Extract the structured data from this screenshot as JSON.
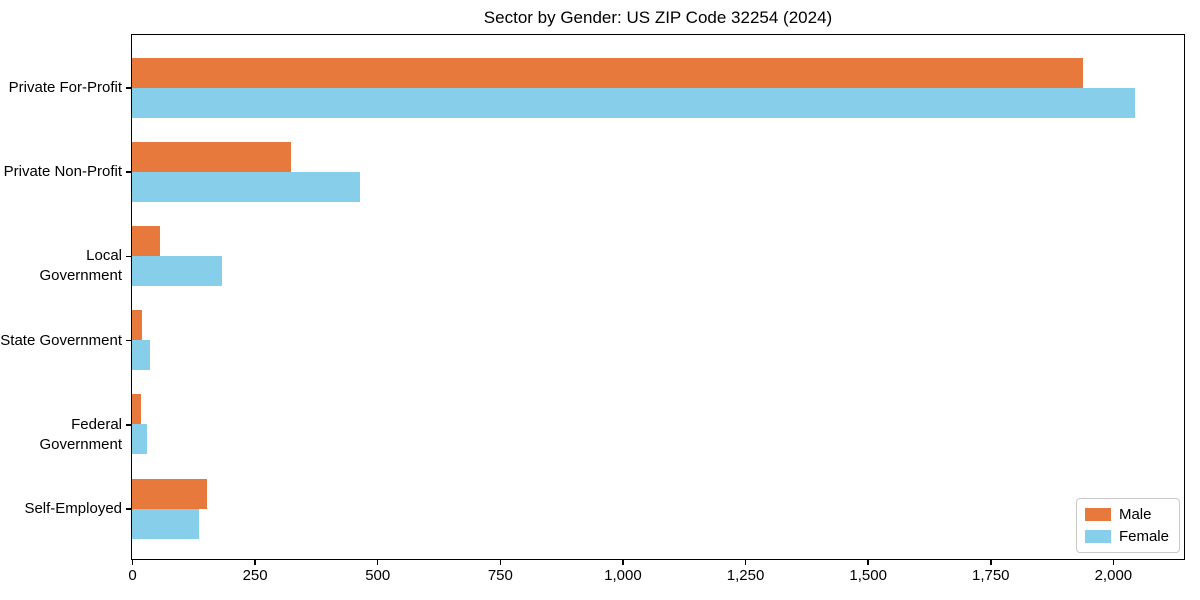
{
  "title": "Sector by Gender: US ZIP Code 32254 (2024)",
  "chart_data": {
    "type": "bar",
    "orientation": "horizontal",
    "title": "Sector by Gender: US ZIP Code 32254 (2024)",
    "categories": [
      "Private For-Profit",
      "Private Non-Profit",
      "Local Government",
      "State Government",
      "Federal Government",
      "Self-Employed"
    ],
    "series": [
      {
        "name": "Male",
        "color": "#e8793d",
        "values": [
          1940,
          325,
          57,
          20,
          18,
          153
        ]
      },
      {
        "name": "Female",
        "color": "#87ceeb",
        "values": [
          2045,
          465,
          183,
          37,
          30,
          136
        ]
      }
    ],
    "xlabel": "",
    "ylabel": "",
    "xlim": [
      0,
      2145
    ],
    "xticks": [
      0,
      250,
      500,
      750,
      1000,
      1250,
      1500,
      1750,
      2000
    ],
    "xtick_labels": [
      "0",
      "250",
      "500",
      "750",
      "1,000",
      "1,250",
      "1,500",
      "1,750",
      "2,000"
    ],
    "grid": false,
    "legend_position": "lower right"
  }
}
